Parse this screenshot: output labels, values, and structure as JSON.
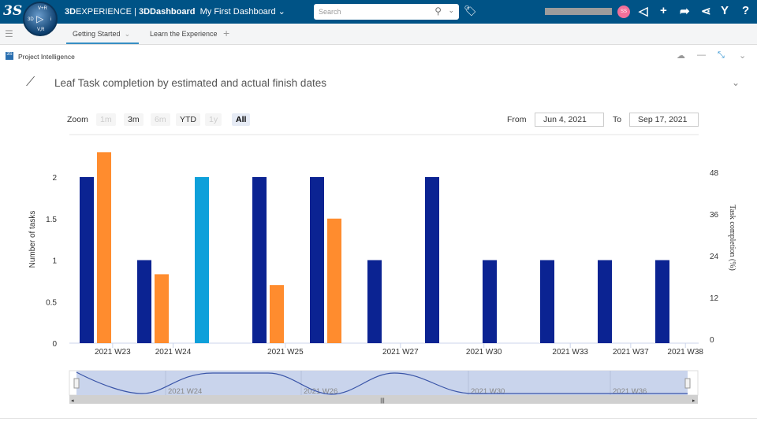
{
  "topbar": {
    "brand_3d": "3D",
    "brand_exp": "EXPERIENCE | ",
    "brand_app": "3DDashboard",
    "dashboard": "My First Dashboard",
    "search_placeholder": "Search",
    "avatar": "SS",
    "compass": {
      "top": "V+R",
      "left": "3D",
      "right": "i",
      "bottom": "V,R"
    }
  },
  "tabs": [
    {
      "label": "Getting Started"
    },
    {
      "label": "Learn the Experience"
    }
  ],
  "widget": {
    "title": "Project Intelligence",
    "chart_title": "Leaf Task completion by estimated and actual finish dates"
  },
  "range": {
    "zoom_label": "Zoom",
    "buttons": [
      "1m",
      "3m",
      "6m",
      "YTD",
      "1y",
      "All"
    ],
    "selected": "All",
    "from_label": "From",
    "from": "Jun 4, 2021",
    "to_label": "To",
    "to": "Sep 17, 2021"
  },
  "chart_data": {
    "type": "bar",
    "title": "Leaf Task completion by estimated and actual finish dates",
    "ylabel": "Number of tasks",
    "y2label": "Task completion (%)",
    "ylim": [
      0,
      2.4
    ],
    "y2lim": [
      0,
      57.6
    ],
    "yticks": [
      "0",
      "0.5",
      "1",
      "1.5",
      "2"
    ],
    "y2ticks": [
      "0",
      "12",
      "24",
      "36",
      "48"
    ],
    "xticks": [
      {
        "label": "2021 W23",
        "group": 0.45
      },
      {
        "label": "2021 W24",
        "group": 1.5
      },
      {
        "label": "2021 W25",
        "group": 3.45
      },
      {
        "label": "2021 W27",
        "group": 5.45
      },
      {
        "label": "2021 W30",
        "group": 6.9
      },
      {
        "label": "2021 W33",
        "group": 8.4
      },
      {
        "label": "2021 W37",
        "group": 9.45
      },
      {
        "label": "2021 W38",
        "group": 10.4
      }
    ],
    "colors": {
      "navy": "#0b2392",
      "orange": "#ff8c2e",
      "cyan": "#0ea0da"
    },
    "groups": [
      {
        "navy": 2,
        "orange": 2.3
      },
      {
        "navy": 1,
        "orange": 0.83
      },
      {
        "cyan": 2
      },
      {
        "navy": 2,
        "orange": 0.7
      },
      {
        "navy": 2,
        "orange": 1.5
      },
      {
        "navy": 1
      },
      {
        "navy": 2
      },
      {
        "navy": 1
      },
      {
        "navy": 1
      },
      {
        "navy": 1
      },
      {
        "navy": 1
      }
    ],
    "navigator": {
      "labels": [
        "2021 W24",
        "2021 W26",
        "2021 W30",
        "2021 W36"
      ]
    }
  }
}
